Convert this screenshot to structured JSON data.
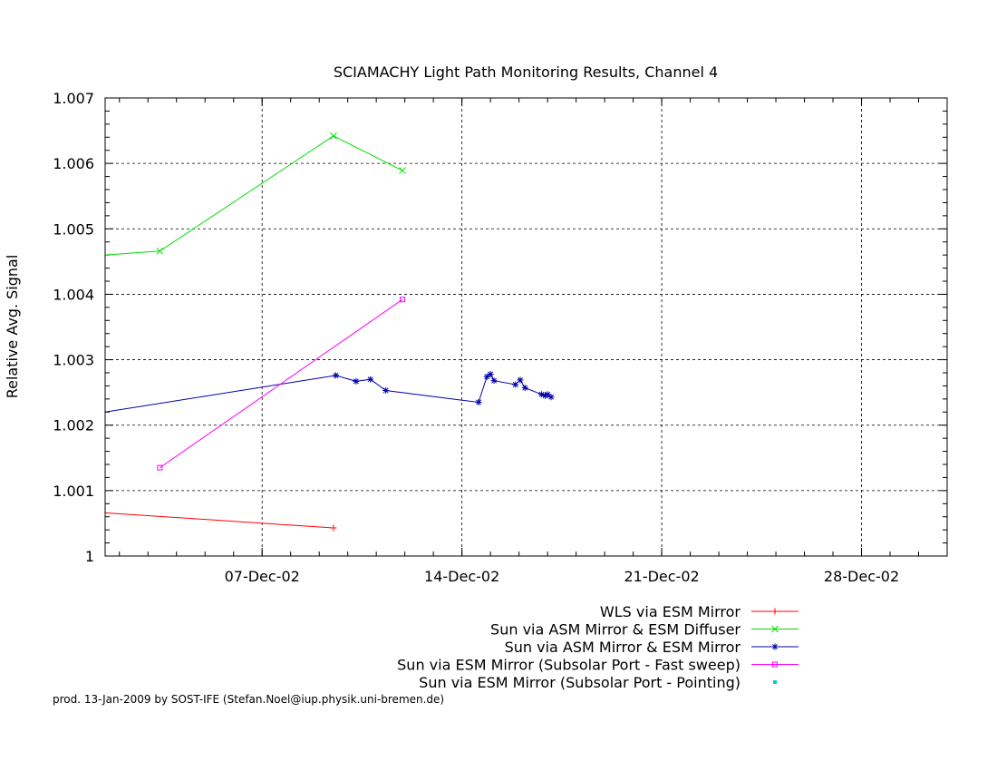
{
  "chart_data": {
    "type": "line",
    "title": "SCIAMACHY Light Path Monitoring Results, Channel 4",
    "ylabel": "Relative Avg. Signal",
    "xlabel": "",
    "x_axis_type": "date",
    "xlim": [
      "2002-12-01T12:00",
      "2002-12-31T00:00"
    ],
    "ylim": [
      1.0,
      1.007
    ],
    "x_tick_labels": [
      {
        "date": "2002-12-07",
        "label": "07-Dec-02"
      },
      {
        "date": "2002-12-14",
        "label": "14-Dec-02"
      },
      {
        "date": "2002-12-21",
        "label": "21-Dec-02"
      },
      {
        "date": "2002-12-28",
        "label": "28-Dec-02"
      }
    ],
    "y_ticks": [
      1,
      1.001,
      1.002,
      1.003,
      1.004,
      1.005,
      1.006,
      1.007
    ],
    "y_tick_labels": [
      "1",
      "1.001",
      "1.002",
      "1.003",
      "1.004",
      "1.005",
      "1.006",
      "1.007"
    ],
    "grid": true,
    "legend_position": "below-right",
    "series": [
      {
        "name": "WLS via ESM Mirror",
        "color": "#ff0000",
        "marker": "plus",
        "points": [
          {
            "x": "2002-12-01T12:00",
            "y": 1.00066
          },
          {
            "x": "2002-12-09T12:00",
            "y": 1.00043
          }
        ]
      },
      {
        "name": "Sun via ASM Mirror & ESM Diffuser",
        "color": "#00dd00",
        "marker": "cross",
        "points": [
          {
            "x": "2002-12-01T12:00",
            "y": 1.0046
          },
          {
            "x": "2002-12-03T10:00",
            "y": 1.00466
          },
          {
            "x": "2002-12-09T12:00",
            "y": 1.00642
          },
          {
            "x": "2002-12-11T22:00",
            "y": 1.00589
          }
        ]
      },
      {
        "name": "Sun via ASM Mirror & ESM Mirror",
        "color": "#0000aa",
        "marker": "star",
        "points": [
          {
            "x": "2002-12-01T12:00",
            "y": 1.0022
          },
          {
            "x": "2002-12-09T14:00",
            "y": 1.00276
          },
          {
            "x": "2002-12-10T07:00",
            "y": 1.00267
          },
          {
            "x": "2002-12-10T19:00",
            "y": 1.0027
          },
          {
            "x": "2002-12-11T08:00",
            "y": 1.00253
          },
          {
            "x": "2002-12-14T14:00",
            "y": 1.00235
          },
          {
            "x": "2002-12-14T21:00",
            "y": 1.00274
          },
          {
            "x": "2002-12-15T00:00",
            "y": 1.00278
          },
          {
            "x": "2002-12-15T03:00",
            "y": 1.00268
          },
          {
            "x": "2002-12-15T21:00",
            "y": 1.00262
          },
          {
            "x": "2002-12-16T01:00",
            "y": 1.00269
          },
          {
            "x": "2002-12-16T05:00",
            "y": 1.00257
          },
          {
            "x": "2002-12-16T19:00",
            "y": 1.00247
          },
          {
            "x": "2002-12-16T22:00",
            "y": 1.00245
          },
          {
            "x": "2002-12-17T00:00",
            "y": 1.00247
          },
          {
            "x": "2002-12-17T03:00",
            "y": 1.00243
          }
        ]
      },
      {
        "name": "Sun via ESM Mirror (Subsolar Port - Fast sweep)",
        "color": "#ff00ff",
        "marker": "square",
        "points": [
          {
            "x": "2002-12-03T10:00",
            "y": 1.00135
          },
          {
            "x": "2002-12-11T22:00",
            "y": 1.00392
          }
        ]
      },
      {
        "name": "Sun via ESM Mirror (Subsolar Port - Pointing)",
        "color": "#00cccc",
        "marker": "dot",
        "points": []
      }
    ]
  },
  "footer": "prod. 13-Jan-2009 by SOST-IFE (Stefan.Noel@iup.physik.uni-bremen.de)"
}
